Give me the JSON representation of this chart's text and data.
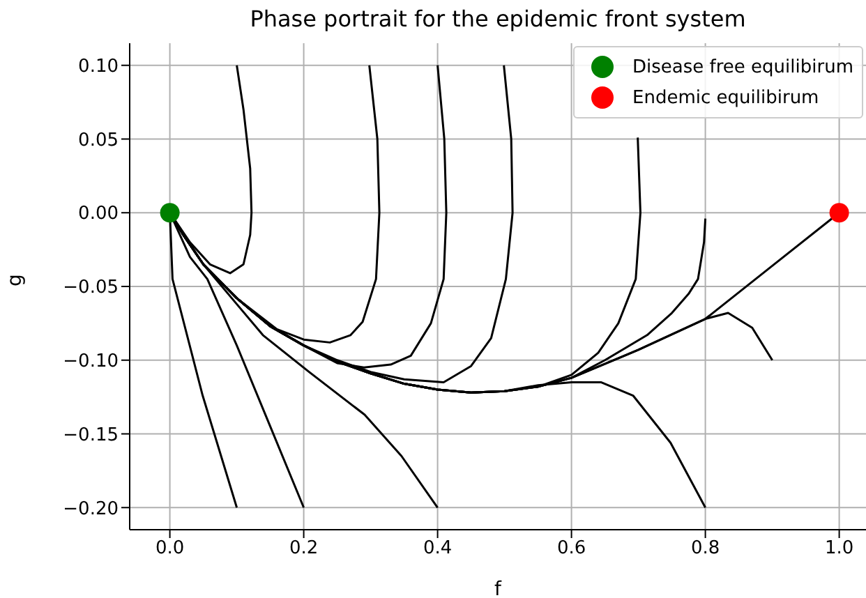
{
  "chart_data": {
    "type": "line",
    "title": "Phase portrait for the epidemic front system",
    "xlabel": "f",
    "ylabel": "g",
    "grid": true,
    "legend": "top right",
    "marker": "none",
    "line_style": "solid",
    "xlim": [
      -0.06,
      1.04
    ],
    "xticks": [
      {
        "value": 0,
        "label": "0.0"
      },
      {
        "value": 0.2,
        "label": "0.2"
      },
      {
        "value": 0.4,
        "label": "0.4"
      },
      {
        "value": 0.6,
        "label": "0.6"
      },
      {
        "value": 0.8,
        "label": "0.8"
      },
      {
        "value": 1,
        "label": "1.0"
      }
    ],
    "ylim": [
      -0.215,
      0.115
    ],
    "yticks": [
      {
        "value": -0.2,
        "label": "−0.20"
      },
      {
        "value": -0.15,
        "label": "−0.15"
      },
      {
        "value": -0.1,
        "label": "−0.10"
      },
      {
        "value": -0.05,
        "label": "−0.05"
      },
      {
        "value": 0,
        "label": "0.00"
      },
      {
        "value": 0.05,
        "label": "0.05"
      },
      {
        "value": 0.1,
        "label": "0.10"
      }
    ],
    "series": [
      {
        "color": "#000000",
        "x": [
          0,
          0.03,
          0.06,
          0.09,
          0.11,
          0.12,
          0.122,
          0.12,
          0.11,
          0.1
        ],
        "values": [
          0,
          -0.02,
          -0.035,
          -0.041,
          -0.035,
          -0.015,
          0,
          0.03,
          0.07,
          0.1
        ]
      },
      {
        "color": "#000000",
        "x": [
          0,
          0.02,
          0.05,
          0.1,
          0.16,
          0.2,
          0.239,
          0.27,
          0.288,
          0.308,
          0.313,
          0.31,
          0.298
        ],
        "values": [
          0,
          -0.015,
          -0.035,
          -0.058,
          -0.079,
          -0.086,
          -0.088,
          -0.083,
          -0.074,
          -0.045,
          0,
          0.05,
          0.1
        ]
      },
      {
        "color": "#000000",
        "x": [
          0,
          0.02,
          0.05,
          0.1,
          0.15,
          0.2,
          0.25,
          0.29,
          0.33,
          0.36,
          0.39,
          0.409,
          0.413,
          0.41,
          0.4
        ],
        "values": [
          0,
          -0.015,
          -0.035,
          -0.058,
          -0.077,
          -0.09,
          -0.102,
          -0.105,
          -0.103,
          -0.097,
          -0.075,
          -0.045,
          0,
          0.05,
          0.1
        ]
      },
      {
        "color": "#000000",
        "x": [
          0,
          0.02,
          0.05,
          0.1,
          0.15,
          0.2,
          0.25,
          0.3,
          0.35,
          0.409,
          0.45,
          0.48,
          0.502,
          0.512,
          0.51,
          0.499
        ],
        "values": [
          0,
          -0.015,
          -0.035,
          -0.058,
          -0.077,
          -0.09,
          -0.1,
          -0.108,
          -0.113,
          -0.115,
          -0.104,
          -0.085,
          -0.045,
          0,
          0.05,
          0.1
        ]
      },
      {
        "color": "#000000",
        "x": [
          0,
          0.02,
          0.05,
          0.1,
          0.15,
          0.2,
          0.25,
          0.3,
          0.35,
          0.4,
          0.45,
          0.5,
          0.55,
          0.6,
          0.64,
          0.67,
          0.696,
          0.703,
          0.699
        ],
        "values": [
          0,
          -0.015,
          -0.035,
          -0.058,
          -0.077,
          -0.09,
          -0.101,
          -0.109,
          -0.116,
          -0.12,
          -0.122,
          -0.121,
          -0.118,
          -0.11,
          -0.095,
          -0.075,
          -0.045,
          0,
          0.051
        ]
      },
      {
        "color": "#000000",
        "x": [
          0,
          0.02,
          0.05,
          0.1,
          0.15,
          0.2,
          0.25,
          0.3,
          0.35,
          0.4,
          0.45,
          0.5,
          0.55,
          0.6,
          0.65,
          0.713,
          0.75,
          0.775,
          0.789,
          0.798,
          0.8
        ],
        "values": [
          0,
          -0.015,
          -0.035,
          -0.058,
          -0.077,
          -0.09,
          -0.101,
          -0.109,
          -0.116,
          -0.12,
          -0.122,
          -0.121,
          -0.118,
          -0.112,
          -0.1,
          -0.083,
          -0.068,
          -0.055,
          -0.045,
          -0.02,
          -0.004
        ]
      },
      {
        "color": "#000000",
        "x": [
          0,
          0.02,
          0.05,
          0.1,
          0.15,
          0.2,
          0.25,
          0.3,
          0.35,
          0.4,
          0.45,
          0.5,
          0.55,
          0.6,
          0.7,
          0.8,
          0.9,
          1
        ],
        "values": [
          0,
          -0.015,
          -0.035,
          -0.058,
          -0.077,
          -0.09,
          -0.101,
          -0.109,
          -0.116,
          -0.12,
          -0.122,
          -0.121,
          -0.118,
          -0.112,
          -0.093,
          -0.072,
          -0.036,
          0
        ]
      },
      {
        "color": "#000000",
        "x": [
          0,
          0.02,
          0.05,
          0.1,
          0.15,
          0.2,
          0.25,
          0.3,
          0.35,
          0.4,
          0.45,
          0.5,
          0.55,
          0.6,
          0.7,
          0.8,
          0.834,
          0.87,
          0.9
        ],
        "values": [
          0,
          -0.015,
          -0.035,
          -0.058,
          -0.077,
          -0.09,
          -0.101,
          -0.109,
          -0.116,
          -0.12,
          -0.122,
          -0.121,
          -0.118,
          -0.112,
          -0.093,
          -0.072,
          -0.068,
          -0.078,
          -0.1
        ]
      },
      {
        "color": "#000000",
        "x": [
          0,
          0.02,
          0.05,
          0.1,
          0.15,
          0.2,
          0.25,
          0.3,
          0.35,
          0.4,
          0.45,
          0.5,
          0.55,
          0.6,
          0.644,
          0.692,
          0.748,
          0.8
        ],
        "values": [
          0,
          -0.015,
          -0.035,
          -0.058,
          -0.077,
          -0.09,
          -0.101,
          -0.109,
          -0.116,
          -0.12,
          -0.122,
          -0.121,
          -0.117,
          -0.115,
          -0.115,
          -0.124,
          -0.156,
          -0.2
        ]
      },
      {
        "color": "#000000",
        "x": [
          0,
          0.05,
          0.1,
          0.139,
          0.208,
          0.291,
          0.346,
          0.4
        ],
        "values": [
          0,
          -0.035,
          -0.062,
          -0.083,
          -0.108,
          -0.137,
          -0.165,
          -0.2
        ]
      },
      {
        "color": "#000000",
        "x": [
          0,
          0.03,
          0.056,
          0.1,
          0.15,
          0.2
        ],
        "values": [
          0,
          -0.03,
          -0.045,
          -0.09,
          -0.145,
          -0.2
        ]
      },
      {
        "color": "#000000",
        "x": [
          0,
          0.004,
          0.049,
          0.1
        ],
        "values": [
          0,
          -0.045,
          -0.124,
          -0.2
        ]
      },
      {
        "type": "scatter",
        "name": "Disease free equilibirum",
        "color": "#008000",
        "marker": "circle",
        "x": [
          0
        ],
        "values": [
          0
        ]
      },
      {
        "type": "scatter",
        "name": "Endemic equilibirum",
        "color": "#ff0000",
        "marker": "circle",
        "x": [
          1
        ],
        "values": [
          0
        ]
      }
    ]
  }
}
